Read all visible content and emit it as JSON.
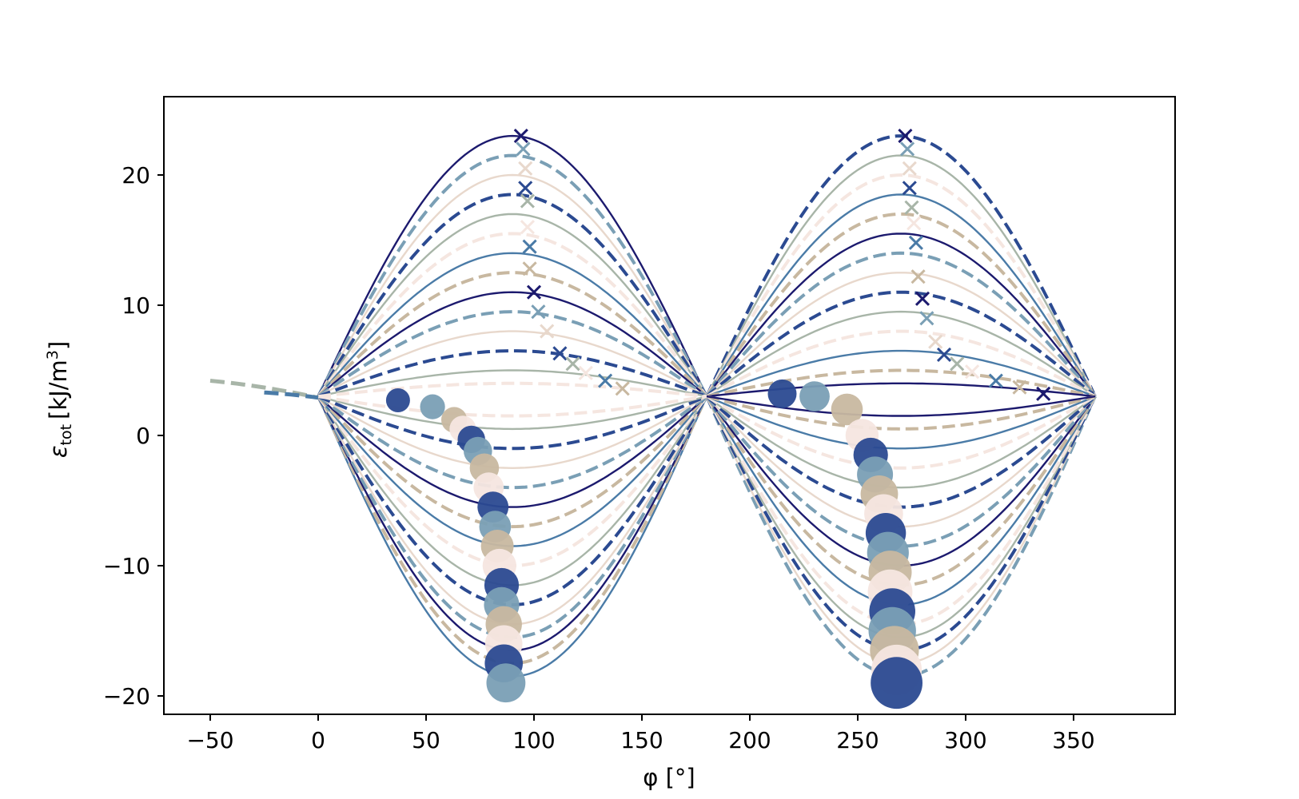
{
  "chart_data": {
    "type": "line",
    "title": "",
    "xlabel": "φ [°]",
    "ylabel_main": "ε",
    "ylabel_sub": "tot",
    "ylabel_unit": "[kJ/m",
    "ylabel_sup": "3",
    "ylabel_close": "]",
    "xlim": [
      -50,
      360
    ],
    "ylim": [
      -20,
      23
    ],
    "xticks": [
      -50,
      0,
      50,
      100,
      150,
      200,
      250,
      300,
      350
    ],
    "yticks": [
      -20,
      -10,
      0,
      10,
      20
    ],
    "grid": false,
    "legend": "none",
    "colors": [
      "#1c1a6e",
      "#2b4a91",
      "#4a7ba7",
      "#7a9fb5",
      "#a8b5a8",
      "#c8b8a0",
      "#e8d8cc",
      "#f5e6e0"
    ],
    "curve_family": {
      "description_values": "energy vs angle curves, eps(phi) = 3 + A*sin(2*phi) + B*sin^2(phi)",
      "amplitudes_positive": [
        20,
        18.5,
        17,
        15.5,
        14,
        12.5,
        11,
        9.5,
        8,
        6.5,
        5,
        3.5,
        2,
        1
      ],
      "amplitudes_negative": [
        -21.5,
        -20.5,
        -19.5,
        -18.5,
        -17.5,
        -16,
        -14.5,
        -13,
        -11.5,
        -10,
        -8.5,
        -7,
        -5.5,
        -4,
        -2.5,
        -1.5
      ],
      "common_points": [
        [
          0,
          3
        ],
        [
          180,
          3
        ],
        [
          360,
          3
        ]
      ]
    },
    "minima_markers_left": [
      [
        37,
        2.7
      ],
      [
        53,
        2.2
      ],
      [
        63,
        1.2
      ],
      [
        67,
        0.5
      ],
      [
        71,
        -0.3
      ],
      [
        74,
        -1.2
      ],
      [
        77,
        -2.5
      ],
      [
        79,
        -4
      ],
      [
        81,
        -5.5
      ],
      [
        82,
        -7
      ],
      [
        83,
        -8.5
      ],
      [
        84,
        -10
      ],
      [
        85,
        -11.5
      ],
      [
        85,
        -13
      ],
      [
        86,
        -14.5
      ],
      [
        86,
        -16
      ],
      [
        86,
        -17.5
      ],
      [
        87,
        -19
      ]
    ],
    "minima_markers_right": [
      [
        215,
        3.2
      ],
      [
        230,
        3
      ],
      [
        245,
        2
      ],
      [
        252,
        0
      ],
      [
        256,
        -1.5
      ],
      [
        258,
        -3
      ],
      [
        260,
        -4.5
      ],
      [
        262,
        -6
      ],
      [
        263,
        -7.5
      ],
      [
        264,
        -9
      ],
      [
        265,
        -10.5
      ],
      [
        265,
        -12
      ],
      [
        266,
        -13.5
      ],
      [
        266,
        -15
      ],
      [
        267,
        -16.5
      ],
      [
        268,
        -18
      ],
      [
        268,
        -19
      ]
    ],
    "maxima_markers_left": [
      [
        94,
        23
      ],
      [
        95,
        22
      ],
      [
        96,
        20.5
      ],
      [
        96,
        19
      ],
      [
        97,
        18
      ],
      [
        97,
        16
      ],
      [
        98,
        14.5
      ],
      [
        98,
        12.8
      ],
      [
        100,
        11
      ],
      [
        102,
        9.5
      ],
      [
        106,
        8
      ],
      [
        112,
        6.3
      ],
      [
        118,
        5.5
      ],
      [
        124,
        4.8
      ],
      [
        133,
        4.2
      ],
      [
        141,
        3.6
      ]
    ],
    "maxima_markers_right": [
      [
        272,
        23
      ],
      [
        273,
        22
      ],
      [
        274,
        20.5
      ],
      [
        274,
        19
      ],
      [
        275,
        17.5
      ],
      [
        276,
        16.3
      ],
      [
        277,
        14.8
      ],
      [
        278,
        12.2
      ],
      [
        280,
        10.5
      ],
      [
        282,
        9
      ],
      [
        286,
        7.2
      ],
      [
        290,
        6.2
      ],
      [
        296,
        5.5
      ],
      [
        303,
        4.9
      ],
      [
        314,
        4.2
      ],
      [
        325,
        3.7
      ],
      [
        336,
        3.2
      ]
    ],
    "extension_curves": [
      {
        "x": [
          -50,
          0
        ],
        "y": [
          4.2,
          2.9
        ]
      },
      {
        "x": [
          -25,
          0
        ],
        "y": [
          3.3,
          2.9
        ]
      }
    ]
  }
}
